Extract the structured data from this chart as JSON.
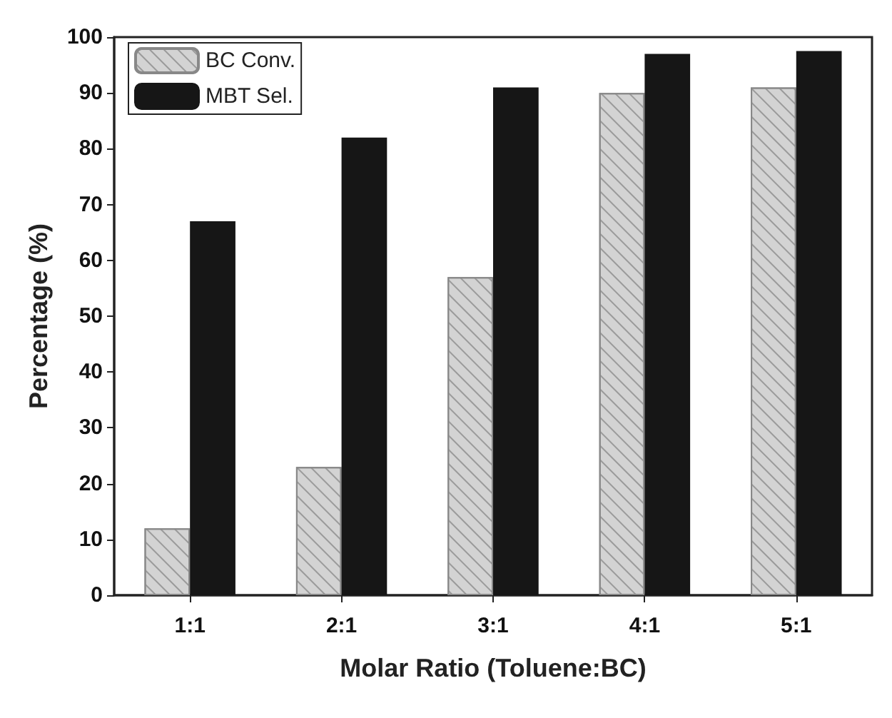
{
  "chart_data": {
    "type": "bar",
    "xlabel": "Molar Ratio (Toluene:BC)",
    "ylabel": "Percentage (%)",
    "categories": [
      "1:1",
      "2:1",
      "3:1",
      "4:1",
      "5:1"
    ],
    "series": [
      {
        "name": "BC Conv.",
        "color": "#d3d3d3",
        "values": [
          12,
          23,
          57,
          90,
          91
        ]
      },
      {
        "name": "MBT Sel.",
        "color": "#161616",
        "values": [
          67,
          82,
          91,
          97,
          97.5
        ]
      }
    ],
    "ylim": [
      0,
      100
    ],
    "yticks": [
      0,
      10,
      20,
      30,
      40,
      50,
      60,
      70,
      80,
      90,
      100
    ],
    "grid": false,
    "legend": "top left"
  }
}
